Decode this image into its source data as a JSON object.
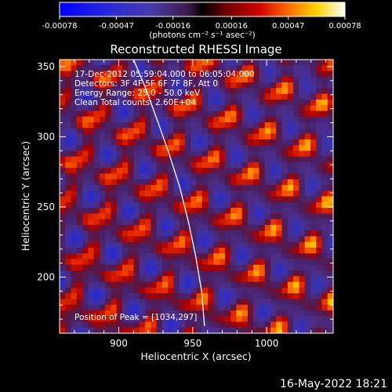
{
  "chart_data": {
    "type": "heatmap",
    "title": "Reconstructed RHESSI Image",
    "xlabel": "Heliocentric X (arcsec)",
    "ylabel": "Heliocentric Y (arcsec)",
    "xlim": [
      860,
      1045
    ],
    "ylim": [
      160,
      355
    ],
    "xticks": [
      "900",
      "950",
      "1000"
    ],
    "yticks": [
      "200",
      "250",
      "300",
      "350"
    ],
    "colorbar": {
      "range": [
        -0.00078,
        0.00078
      ],
      "ticks": [
        "-0.00078",
        "-0.00047",
        "-0.00016",
        "0.00016",
        "0.00047",
        "0.00078"
      ],
      "label": "(photons cm⁻² s⁻¹ asec⁻²)"
    },
    "annotations": {
      "line1": "17-Dec-2012 05:59:04.000 to 06:05:04.000",
      "line2": "Detectors: 3F 4F 5F 6F 7F 8F, Att 0",
      "line3": "Energy Range: 25.0 - 50.0 keV",
      "line4": "Clean     Total counts: 2.60E+04",
      "peak": "Position of Peak = [1034,297]"
    },
    "limb_curve": [
      [
        910,
        355
      ],
      [
        918,
        335
      ],
      [
        926,
        312
      ],
      [
        934,
        288
      ],
      [
        941,
        265
      ],
      [
        947,
        240
      ],
      [
        952,
        215
      ],
      [
        956,
        190
      ],
      [
        958,
        165
      ]
    ]
  },
  "footer": {
    "timestamp": "16-May-2022 18:21"
  }
}
